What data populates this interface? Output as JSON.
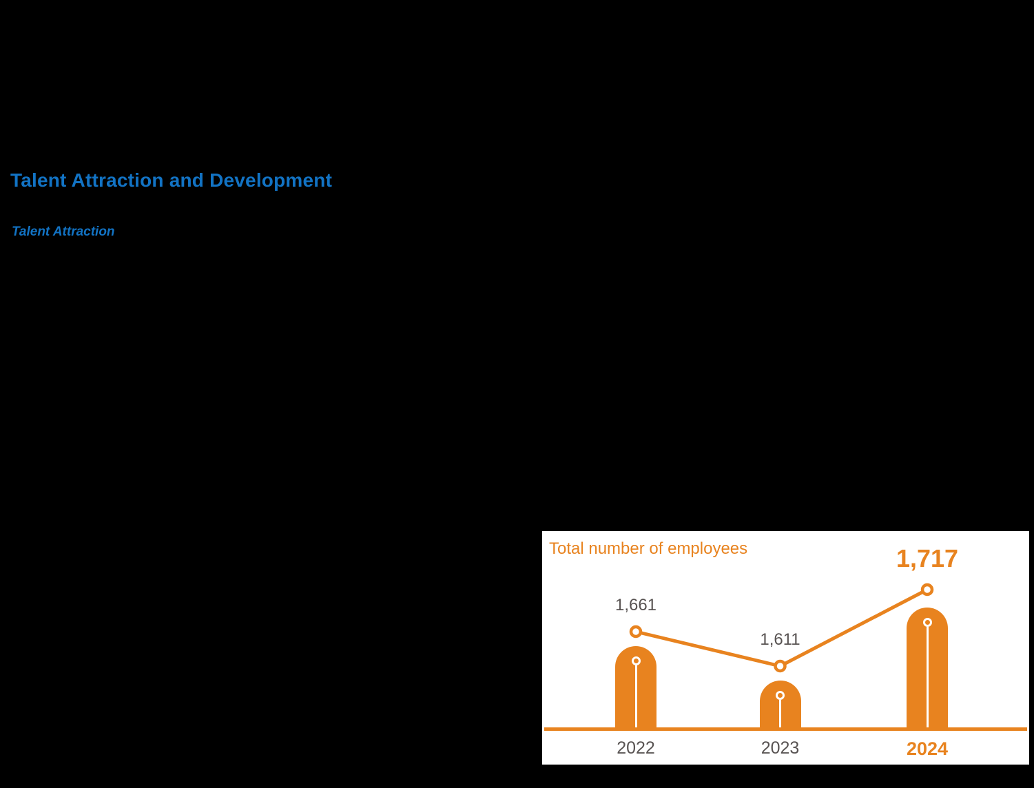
{
  "page": {
    "heading": "Talent Attraction and Development",
    "subheading": "Talent Attraction"
  },
  "colors": {
    "page_bg": "#000000",
    "heading_blue": "#1273C4",
    "accent_orange": "#E8831F",
    "label_gray": "#585352",
    "chart_bg": "#FFFFFF"
  },
  "chart_data": {
    "type": "bar",
    "subtype": "rounded-lollipop-bars-with-trend-line",
    "title": "Total number of employees",
    "categories": [
      "2022",
      "2023",
      "2024"
    ],
    "values": [
      1661,
      1611,
      1717
    ],
    "value_labels": [
      "1,661",
      "1,611",
      "1,717"
    ],
    "highlight_category": "2024",
    "highlight_value_label": "1,717",
    "xlabel": "",
    "ylabel": "",
    "ylim": [
      1541,
      1760
    ],
    "grid": false,
    "legend": false,
    "marker_style": "open-circle",
    "bar_color": "#E8831F",
    "line_color": "#E8831F",
    "label_color": "#585352"
  }
}
